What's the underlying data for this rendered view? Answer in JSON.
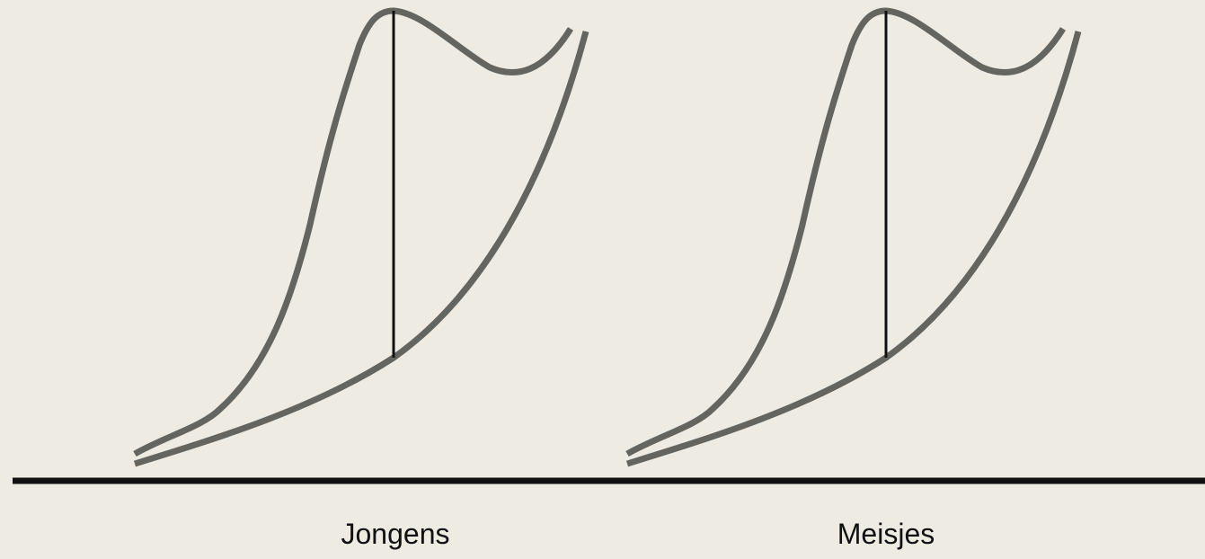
{
  "panels": [
    {
      "id": "boys",
      "label": "Jongens"
    },
    {
      "id": "girls",
      "label": "Meisjes"
    }
  ],
  "colors": {
    "background": "#eeebe3",
    "curve": "#656560",
    "divider": "#111111",
    "baseline": "#111111"
  }
}
